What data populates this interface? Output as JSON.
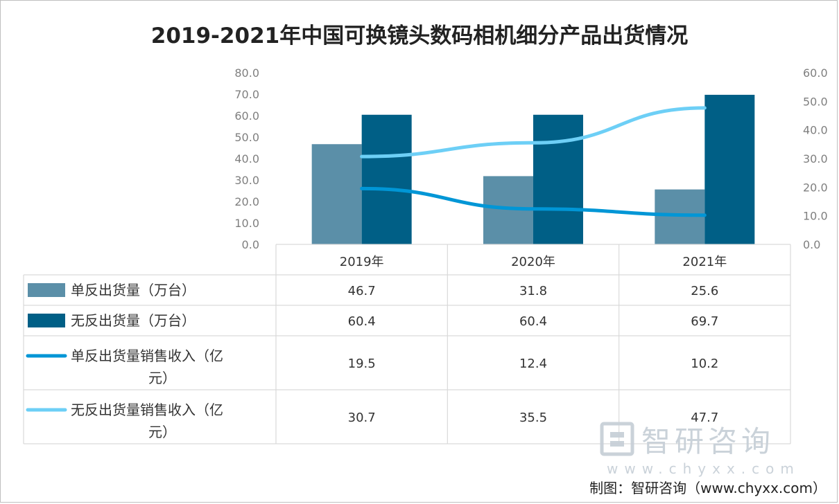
{
  "chart_data": {
    "type": "bar",
    "title": "2019-2021年中国可换镜头数码相机细分产品出货情况",
    "categories": [
      "2019年",
      "2020年",
      "2021年"
    ],
    "left_axis": {
      "ylim": [
        0,
        80
      ],
      "ticks": [
        "0.0",
        "10.0",
        "20.0",
        "30.0",
        "40.0",
        "50.0",
        "60.0",
        "70.0",
        "80.0"
      ]
    },
    "right_axis": {
      "ylim": [
        0,
        60
      ],
      "ticks": [
        "0.0",
        "10.0",
        "20.0",
        "30.0",
        "40.0",
        "50.0",
        "60.0"
      ]
    },
    "series": [
      {
        "name": "单反出货量（万台）",
        "kind": "bar",
        "axis": "left",
        "color": "#5b8fa8",
        "values": [
          46.7,
          31.8,
          25.6
        ],
        "labels": [
          "46.7",
          "31.8",
          "25.6"
        ]
      },
      {
        "name": "无反出货量（万台）",
        "kind": "bar",
        "axis": "left",
        "color": "#005f86",
        "values": [
          60.4,
          60.4,
          69.7
        ],
        "labels": [
          "60.4",
          "60.4",
          "69.7"
        ]
      },
      {
        "name_line1": "单反出货量销售收入（亿",
        "name_line2": "元）",
        "kind": "line",
        "axis": "right",
        "color": "#0096d6",
        "values": [
          19.5,
          12.4,
          10.2
        ],
        "labels": [
          "19.5",
          "12.4",
          "10.2"
        ]
      },
      {
        "name_line1": "无反出货量销售收入（亿",
        "name_line2": "元）",
        "kind": "line",
        "axis": "right",
        "color": "#6dcff6",
        "values": [
          30.7,
          35.5,
          47.7
        ],
        "labels": [
          "30.7",
          "35.5",
          "47.7"
        ]
      }
    ],
    "data_table": true,
    "legend": "in data table"
  },
  "watermark": {
    "name": "智研咨询",
    "url": "www.chyxx.com"
  },
  "source": "制图：智研咨询（www.chyxx.com）"
}
